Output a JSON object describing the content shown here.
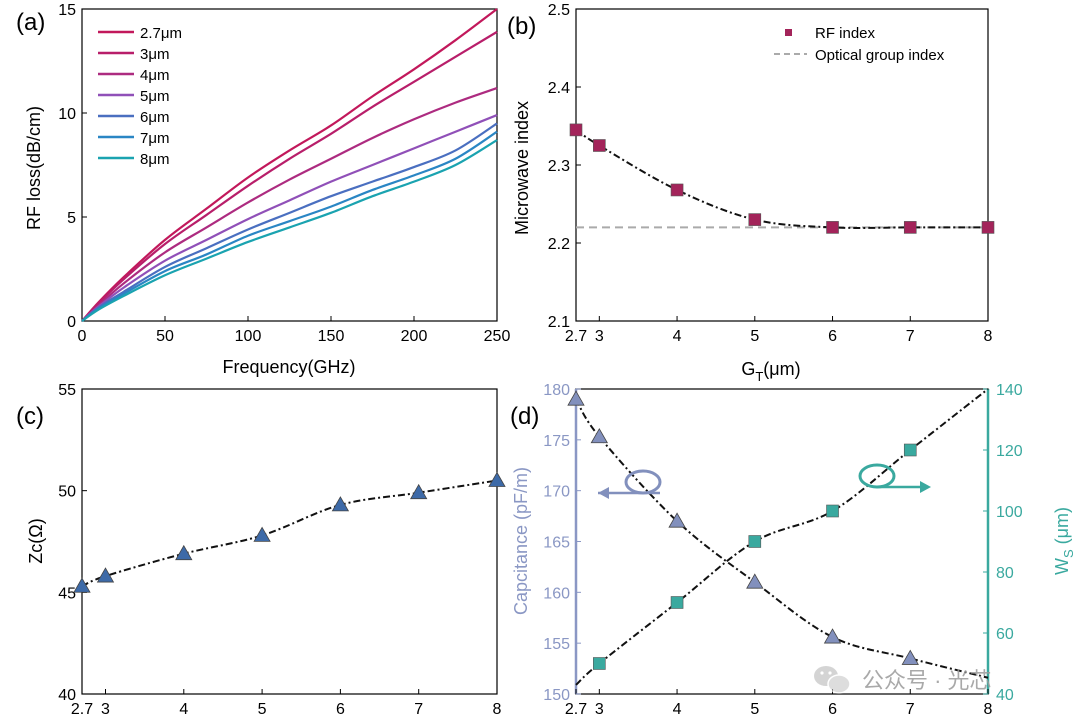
{
  "chart_data": [
    {
      "panel": "(a)",
      "type": "line",
      "xlabel": "Frequency(GHz)",
      "ylabel": "RF loss(dB/cm)",
      "xlim": [
        0,
        250
      ],
      "ylim": [
        0,
        15
      ],
      "xticks": [
        "0",
        "50",
        "100",
        "150",
        "200",
        "250"
      ],
      "yticks": [
        "0",
        "5",
        "10",
        "15"
      ],
      "legend_position": "top-left",
      "x": [
        0,
        10,
        25,
        50,
        75,
        100,
        125,
        150,
        175,
        200,
        225,
        250
      ],
      "series": [
        {
          "name": "2.7μm",
          "color": "#c2185b",
          "values": [
            0,
            0.9,
            2.1,
            3.9,
            5.4,
            6.9,
            8.2,
            9.4,
            10.8,
            12.1,
            13.5,
            15.0
          ]
        },
        {
          "name": "3μm",
          "color": "#b81e6a",
          "values": [
            0,
            0.85,
            2.0,
            3.7,
            5.1,
            6.5,
            7.8,
            9.0,
            10.3,
            11.5,
            12.7,
            13.9
          ]
        },
        {
          "name": "4μm",
          "color": "#ad2b80",
          "values": [
            0,
            0.75,
            1.8,
            3.3,
            4.5,
            5.7,
            6.8,
            7.8,
            8.8,
            9.7,
            10.5,
            11.2
          ]
        },
        {
          "name": "5μm",
          "color": "#9050b8",
          "values": [
            0,
            0.7,
            1.6,
            2.9,
            3.9,
            4.9,
            5.8,
            6.7,
            7.5,
            8.3,
            9.1,
            9.9
          ]
        },
        {
          "name": "6μm",
          "color": "#4a6fc0",
          "values": [
            0,
            0.65,
            1.4,
            2.6,
            3.5,
            4.4,
            5.2,
            6.0,
            6.7,
            7.4,
            8.2,
            9.5
          ]
        },
        {
          "name": "7μm",
          "color": "#2a86c4",
          "values": [
            0,
            0.6,
            1.3,
            2.4,
            3.2,
            4.1,
            4.8,
            5.5,
            6.3,
            7.0,
            7.8,
            9.1
          ]
        },
        {
          "name": "8μm",
          "color": "#1aa3b0",
          "values": [
            0,
            0.55,
            1.2,
            2.2,
            3.0,
            3.8,
            4.5,
            5.2,
            6.0,
            6.7,
            7.5,
            8.7
          ]
        }
      ]
    },
    {
      "panel": "(b)",
      "type": "scatter",
      "xlabel": "G",
      "xlabel_sub": "T",
      "xlabel_unit": "(μm)",
      "ylabel": "Microwave index",
      "xlim": [
        2.7,
        8
      ],
      "ylim": [
        2.1,
        2.5
      ],
      "xticks": [
        2.7,
        3,
        4,
        5,
        6,
        7,
        8
      ],
      "xticklabels": [
        "2.7",
        "3",
        "4",
        "5",
        "6",
        "7",
        "8"
      ],
      "yticks": [
        "2.1",
        "2.2",
        "2.3",
        "2.4",
        "2.5"
      ],
      "legend_position": "top-right",
      "x": [
        2.7,
        3,
        4,
        5,
        6,
        7,
        8
      ],
      "series": [
        {
          "name": "RF index",
          "color": "#a3245a",
          "marker": "square",
          "values": [
            2.345,
            2.325,
            2.268,
            2.23,
            2.22,
            2.22,
            2.22
          ]
        },
        {
          "name": "Optical group index",
          "color": "#aaaaaa",
          "style": "dashed",
          "values": [
            2.22,
            2.22,
            2.22,
            2.22,
            2.22,
            2.22,
            2.22
          ]
        }
      ]
    },
    {
      "panel": "(c)",
      "type": "scatter",
      "ylabel": "Zc(Ω)",
      "xlim": [
        2.7,
        8
      ],
      "ylim": [
        40,
        55
      ],
      "xticks": [
        2.7,
        3,
        4,
        5,
        6,
        7,
        8
      ],
      "xticklabels": [
        "2.7",
        "3",
        "4",
        "5",
        "6",
        "7",
        "8"
      ],
      "yticks": [
        "40",
        "45",
        "50",
        "55"
      ],
      "x": [
        2.7,
        3,
        4,
        5,
        6,
        7,
        8
      ],
      "series": [
        {
          "color": "#3d6aa8",
          "marker": "triangle",
          "values": [
            45.3,
            45.8,
            46.9,
            47.8,
            49.3,
            49.9,
            50.5
          ]
        }
      ]
    },
    {
      "panel": "(d)",
      "type": "scatter",
      "ylabel_left": "Capcitance (pF/m)",
      "ylabel_right": "W",
      "ylabel_right_sub": "S",
      "ylabel_right_unit": " (μm)",
      "xlim": [
        2.7,
        8
      ],
      "ylim_left": [
        150,
        180
      ],
      "ylim_right": [
        40,
        140
      ],
      "xticks": [
        2.7,
        3,
        4,
        5,
        6,
        7,
        8
      ],
      "xticklabels": [
        "2.7",
        "3",
        "4",
        "5",
        "6",
        "7",
        "8"
      ],
      "yticks_left": [
        "150",
        "155",
        "160",
        "165",
        "170",
        "175",
        "180"
      ],
      "yticks_right": [
        "40",
        "60",
        "80",
        "100",
        "120",
        "140"
      ],
      "x": [
        2.7,
        3,
        4,
        5,
        6,
        7,
        8
      ],
      "series": [
        {
          "axis": "left",
          "color": "#8290bd",
          "marker": "triangle",
          "values": [
            179,
            175.3,
            167,
            161,
            155.6,
            153.5,
            null
          ],
          "fit": [
            179,
            175.3,
            167,
            161,
            155.6,
            153.5,
            151.6
          ]
        },
        {
          "axis": "right",
          "color": "#3aa99f",
          "marker": "square",
          "values": [
            null,
            50,
            70,
            90,
            100,
            120,
            null
          ],
          "fit": [
            43,
            50,
            70,
            90,
            100,
            120,
            140
          ]
        }
      ]
    }
  ],
  "colors": {
    "left_axis": "#8a97c4",
    "right_axis": "#3aa99f",
    "fit_line": "#111111"
  },
  "watermark": "公众号 · 光芯"
}
